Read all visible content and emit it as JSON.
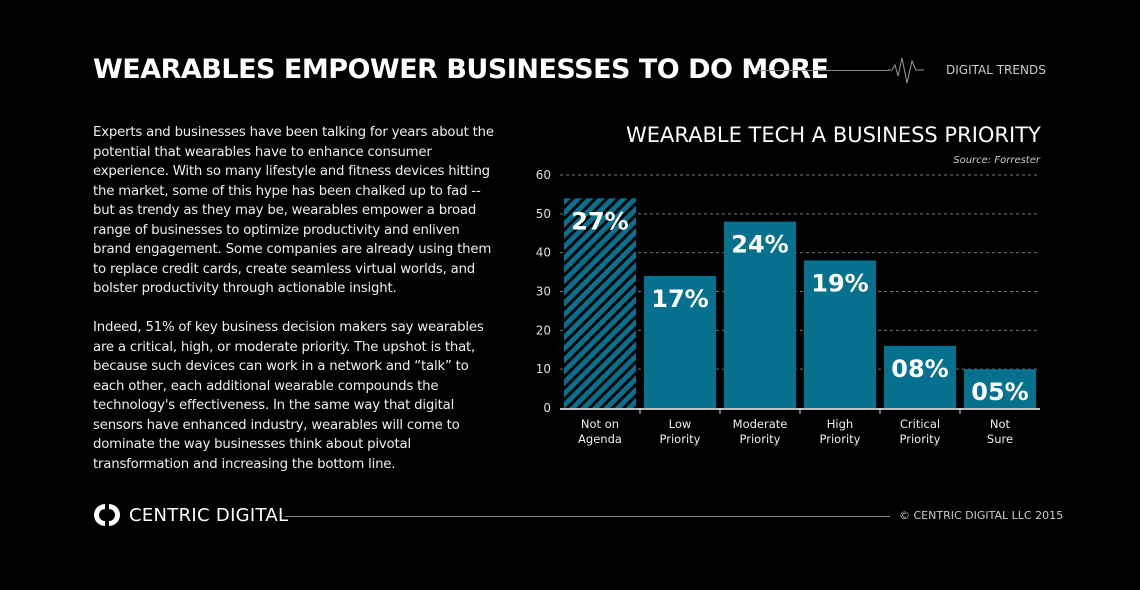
{
  "header": {
    "title": "WEARABLES EMPOWER BUSINESSES TO DO MORE",
    "tag": "DIGITAL TRENDS"
  },
  "body": {
    "paragraphs": [
      "Experts and businesses have been talking for years about the potential that wearables have to enhance consumer experience. With so many lifestyle and fitness devices hitting the market, some of this hype has been chalked up to fad -- but as trendy as they may be, wearables empower a broad range of businesses to optimize productivity and enliven brand engagement. Some companies are already using them to replace credit cards, create seamless virtual worlds, and bolster productivity through actionable insight.",
      "Indeed, 51% of key business decision makers say wearables are a critical, high, or moderate priority. The upshot is that, because such devices can work in a network and “talk” to each other, each additional wearable compounds the technology's effectiveness. In the same way that digital sensors have enhanced industry, wearables will come to dominate the way businesses think about pivotal transformation and increasing the bottom line."
    ]
  },
  "chart_data": {
    "type": "bar",
    "title": "WEARABLE TECH A BUSINESS PRIORITY",
    "source": "Source:  Forrester",
    "categories": [
      [
        "Not on",
        "Agenda"
      ],
      [
        "Low",
        "Priority"
      ],
      [
        "Moderate",
        "Priority"
      ],
      [
        "High",
        "Priority"
      ],
      [
        "Critical",
        "Priority"
      ],
      [
        "Not",
        "Sure"
      ]
    ],
    "values": [
      54,
      34,
      48,
      38,
      16,
      10
    ],
    "data_labels": [
      "27%",
      "17%",
      "24%",
      "19%",
      "08%",
      "05%"
    ],
    "hatched": [
      true,
      false,
      false,
      false,
      false,
      false
    ],
    "ylim": [
      0,
      60
    ],
    "yticks": [
      0,
      10,
      20,
      30,
      40,
      50,
      60
    ],
    "grid": true,
    "bar_color": "#06718f"
  },
  "footer": {
    "brand": "CENTRIC DIGITAL",
    "copyright": "© CENTRIC DIGITAL LLC 2015"
  }
}
